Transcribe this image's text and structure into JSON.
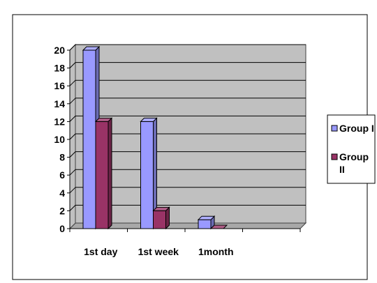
{
  "chart_data": {
    "type": "bar",
    "categories": [
      "1st day",
      "1st week",
      "1month"
    ],
    "series": [
      {
        "name": "Group I",
        "values": [
          20,
          12,
          1
        ],
        "color": "#9999ff"
      },
      {
        "name": "Group II",
        "values": [
          12,
          2,
          0
        ],
        "color": "#993366"
      }
    ],
    "ylim": [
      0,
      20
    ],
    "yticks": [
      0,
      2,
      4,
      6,
      8,
      10,
      12,
      14,
      16,
      18,
      20
    ],
    "grid": true,
    "legend_position": "right",
    "three_d": true,
    "title": "",
    "xlabel": "",
    "ylabel": ""
  }
}
